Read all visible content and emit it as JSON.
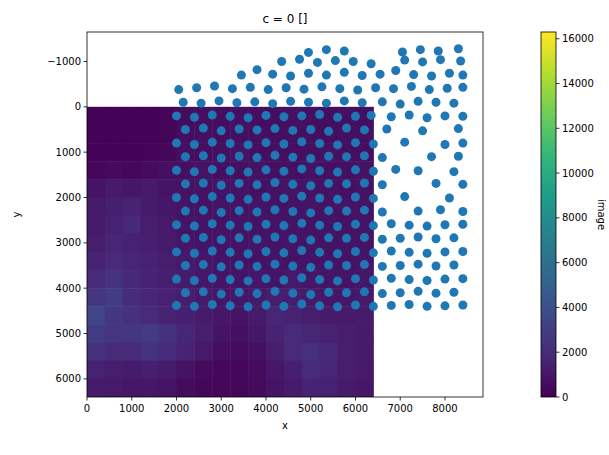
{
  "chart_data": {
    "type": "scatter",
    "title": "c = 0 []",
    "x_label": "x",
    "y_label": "y",
    "color": "#1f77b4",
    "marker": "circle",
    "xlim": [
      0,
      8850
    ],
    "ylim": [
      6400,
      -1650
    ],
    "xticks": [
      0,
      1000,
      2000,
      3000,
      4000,
      5000,
      6000,
      7000,
      8000
    ],
    "yticks": [
      {
        "value": -1000,
        "label": "−1000"
      },
      0,
      1000,
      2000,
      3000,
      4000,
      5000,
      6000
    ],
    "image": {
      "xlim": [
        0,
        6400
      ],
      "ylim": [
        0,
        6400
      ],
      "cells": [
        [
          100,
          100,
          100,
          100,
          150,
          500,
          600,
          600,
          700,
          600,
          600,
          700,
          600,
          600,
          700,
          600
        ],
        [
          100,
          100,
          100,
          100,
          200,
          600,
          700,
          600,
          700,
          700,
          600,
          700,
          700,
          600,
          700,
          700
        ],
        [
          100,
          100,
          100,
          150,
          300,
          700,
          600,
          700,
          800,
          700,
          700,
          600,
          700,
          800,
          700,
          600
        ],
        [
          300,
          400,
          300,
          500,
          700,
          700,
          800,
          700,
          700,
          800,
          700,
          700,
          800,
          700,
          700,
          800
        ],
        [
          900,
          1200,
          1000,
          1100,
          900,
          800,
          800,
          900,
          800,
          700,
          800,
          900,
          800,
          800,
          700,
          800
        ],
        [
          1100,
          1400,
          1600,
          1200,
          1000,
          900,
          800,
          900,
          800,
          900,
          800,
          800,
          900,
          800,
          900,
          800
        ],
        [
          1200,
          1500,
          1800,
          1300,
          1100,
          900,
          900,
          800,
          900,
          800,
          900,
          900,
          800,
          900,
          800,
          900
        ],
        [
          1300,
          1700,
          1500,
          1400,
          1200,
          1000,
          900,
          900,
          800,
          900,
          800,
          900,
          900,
          800,
          900,
          800
        ],
        [
          1600,
          1900,
          1700,
          1500,
          1300,
          1100,
          1000,
          900,
          900,
          800,
          900,
          800,
          900,
          900,
          800,
          900
        ],
        [
          2000,
          2400,
          1800,
          1600,
          1400,
          1200,
          1000,
          900,
          900,
          1000,
          900,
          1100,
          1000,
          900,
          900,
          1000
        ],
        [
          2600,
          2900,
          2100,
          1700,
          1500,
          1300,
          1100,
          1000,
          1000,
          1100,
          1400,
          1300,
          1200,
          1000,
          1000,
          1100
        ],
        [
          3400,
          2700,
          2300,
          1900,
          1600,
          1400,
          1200,
          1000,
          900,
          1200,
          1700,
          1500,
          1300,
          1200,
          1100,
          1200
        ],
        [
          2900,
          2500,
          2600,
          2800,
          2300,
          1700,
          1300,
          900,
          700,
          1000,
          1600,
          2000,
          1700,
          1500,
          1300,
          1200
        ],
        [
          2300,
          1900,
          2000,
          2400,
          2000,
          1600,
          1100,
          600,
          500,
          700,
          1300,
          1900,
          2200,
          1800,
          1400,
          1200
        ],
        [
          1500,
          1300,
          1200,
          1400,
          1200,
          800,
          400,
          300,
          300,
          500,
          1000,
          1400,
          2000,
          1700,
          1300,
          1100
        ],
        [
          1200,
          1100,
          1000,
          1000,
          900,
          500,
          300,
          300,
          300,
          400,
          900,
          1200,
          1600,
          1500,
          1200,
          1000
        ]
      ]
    },
    "colorbar": {
      "label": "image",
      "range": [
        0,
        16300
      ],
      "ticks": [
        0,
        2000,
        4000,
        6000,
        8000,
        10000,
        12000,
        14000,
        16000
      ]
    },
    "x": [
      4950,
      5350,
      5750,
      7050,
      7450,
      7850,
      8300,
      4350,
      4750,
      5150,
      5550,
      5950,
      6350,
      7100,
      7500,
      7900,
      8350,
      3450,
      3800,
      4150,
      4550,
      4950,
      5350,
      5750,
      6150,
      6550,
      6900,
      7300,
      7700,
      8100,
      8400,
      2050,
      2450,
      2850,
      3250,
      3650,
      4050,
      4450,
      4850,
      5250,
      5650,
      6050,
      6450,
      6850,
      7250,
      7650,
      8050,
      8400,
      2150,
      2550,
      2950,
      3350,
      3750,
      4150,
      4550,
      4950,
      5350,
      5750,
      6150,
      6600,
      7000,
      7400,
      7800,
      8200,
      2000,
      2400,
      2800,
      3200,
      3600,
      4000,
      4400,
      4800,
      5200,
      5600,
      6000,
      6350,
      6800,
      7200,
      7600,
      8000,
      8400,
      2200,
      2600,
      3000,
      3400,
      3800,
      4200,
      4600,
      5000,
      5400,
      5800,
      6200,
      6700,
      7500,
      8300,
      2000,
      2400,
      2800,
      3200,
      3600,
      4000,
      4400,
      4800,
      5200,
      5600,
      6000,
      6400,
      7100,
      8000,
      8400,
      2200,
      2600,
      3000,
      3400,
      3800,
      4200,
      4600,
      5000,
      5400,
      5800,
      6200,
      6600,
      7700,
      8300,
      2000,
      2400,
      2800,
      3200,
      3600,
      4000,
      4400,
      4800,
      5200,
      5600,
      6000,
      6400,
      6900,
      7400,
      8200,
      2200,
      2600,
      3000,
      3400,
      3800,
      4200,
      4600,
      5000,
      5400,
      5800,
      6200,
      6600,
      7800,
      8400,
      2000,
      2400,
      2800,
      3200,
      3600,
      4000,
      4400,
      4800,
      5200,
      5600,
      6000,
      6400,
      7100,
      8100,
      2200,
      2600,
      3000,
      3400,
      3800,
      4200,
      4600,
      5000,
      5400,
      5800,
      6200,
      6600,
      7400,
      7900,
      8400,
      2000,
      2400,
      2800,
      3200,
      3600,
      4000,
      4400,
      4800,
      5200,
      5600,
      6000,
      6400,
      6800,
      7200,
      7600,
      8000,
      8400,
      2200,
      2600,
      3000,
      3400,
      3800,
      4200,
      4600,
      5000,
      5400,
      5800,
      6200,
      6600,
      7000,
      7400,
      7800,
      8200,
      2000,
      2400,
      2800,
      3200,
      3600,
      4000,
      4400,
      4800,
      5200,
      5600,
      6000,
      6400,
      6800,
      7200,
      7600,
      8000,
      8400,
      2200,
      2600,
      3000,
      3400,
      3800,
      4200,
      4600,
      5000,
      5400,
      5800,
      6200,
      6600,
      7000,
      7400,
      7800,
      8200,
      2000,
      2400,
      2800,
      3200,
      3600,
      4000,
      4400,
      4800,
      5200,
      5600,
      6000,
      6400,
      6800,
      7200,
      7600,
      8000,
      8400,
      2200,
      2600,
      3000,
      3400,
      3800,
      4200,
      4600,
      5000,
      5400,
      5800,
      6200,
      6600,
      7000,
      7400,
      7800,
      8200,
      2000,
      2400,
      2800,
      3200,
      3600,
      4000,
      4400,
      4800,
      5200,
      5600,
      6000,
      6400,
      6800,
      7200,
      7600,
      8000,
      8400
    ],
    "values": [
      -1200,
      -1260,
      -1230,
      -1210,
      -1260,
      -1230,
      -1280,
      -1000,
      -1050,
      -980,
      -1020,
      -1000,
      -950,
      -1030,
      -990,
      -1040,
      -1010,
      -700,
      -820,
      -720,
      -680,
      -740,
      -700,
      -760,
      -690,
      -720,
      -800,
      -710,
      -680,
      -740,
      -700,
      -380,
      -420,
      -460,
      -400,
      -430,
      -380,
      -420,
      -390,
      -440,
      -400,
      -370,
      -420,
      -400,
      -450,
      -380,
      -410,
      -430,
      -100,
      -80,
      -130,
      -90,
      -110,
      -70,
      -120,
      -100,
      -80,
      -130,
      -90,
      -110,
      -60,
      -120,
      -100,
      -80,
      200,
      230,
      180,
      210,
      240,
      190,
      220,
      200,
      170,
      230,
      210,
      190,
      220,
      180,
      240,
      200,
      210,
      500,
      470,
      530,
      490,
      510,
      480,
      520,
      500,
      540,
      470,
      510,
      490,
      530,
      480,
      800,
      830,
      780,
      810,
      840,
      790,
      820,
      770,
      810,
      840,
      790,
      820,
      780,
      830,
      800,
      1100,
      1080,
      1130,
      1090,
      1120,
      1070,
      1110,
      1140,
      1090,
      1100,
      1080,
      1120,
      1100,
      1090,
      1400,
      1430,
      1380,
      1410,
      1440,
      1390,
      1420,
      1370,
      1410,
      1440,
      1390,
      1420,
      1380,
      1410,
      1430,
      1700,
      1680,
      1730,
      1690,
      1720,
      1670,
      1710,
      1740,
      1690,
      1700,
      1680,
      1720,
      1690,
      1710,
      2000,
      2030,
      1980,
      2010,
      2040,
      1990,
      2020,
      1970,
      2010,
      2040,
      1990,
      2020,
      1980,
      2010,
      2300,
      2280,
      2330,
      2290,
      2320,
      2270,
      2310,
      2340,
      2290,
      2300,
      2280,
      2320,
      2300,
      2270,
      2310,
      2600,
      2630,
      2580,
      2610,
      2640,
      2590,
      2620,
      2570,
      2610,
      2640,
      2590,
      2620,
      2580,
      2610,
      2630,
      2600,
      2590,
      2900,
      2880,
      2930,
      2890,
      2920,
      2870,
      2910,
      2940,
      2890,
      2900,
      2880,
      2920,
      2900,
      2870,
      2910,
      2890,
      3200,
      3230,
      3180,
      3210,
      3240,
      3190,
      3220,
      3170,
      3210,
      3240,
      3190,
      3220,
      3180,
      3210,
      3230,
      3200,
      3190,
      3500,
      3480,
      3530,
      3490,
      3520,
      3470,
      3510,
      3540,
      3490,
      3500,
      3480,
      3520,
      3500,
      3470,
      3510,
      3490,
      3800,
      3830,
      3780,
      3810,
      3840,
      3790,
      3820,
      3770,
      3810,
      3840,
      3790,
      3820,
      3780,
      3810,
      3830,
      3800,
      3790,
      4100,
      4080,
      4130,
      4090,
      4120,
      4070,
      4110,
      4140,
      4090,
      4100,
      4080,
      4120,
      4100,
      4070,
      4110,
      4090,
      4380,
      4400,
      4360,
      4390,
      4410,
      4370,
      4400,
      4350,
      4390,
      4410,
      4370,
      4400,
      4380,
      4360,
      4400,
      4390,
      4370
    ]
  }
}
